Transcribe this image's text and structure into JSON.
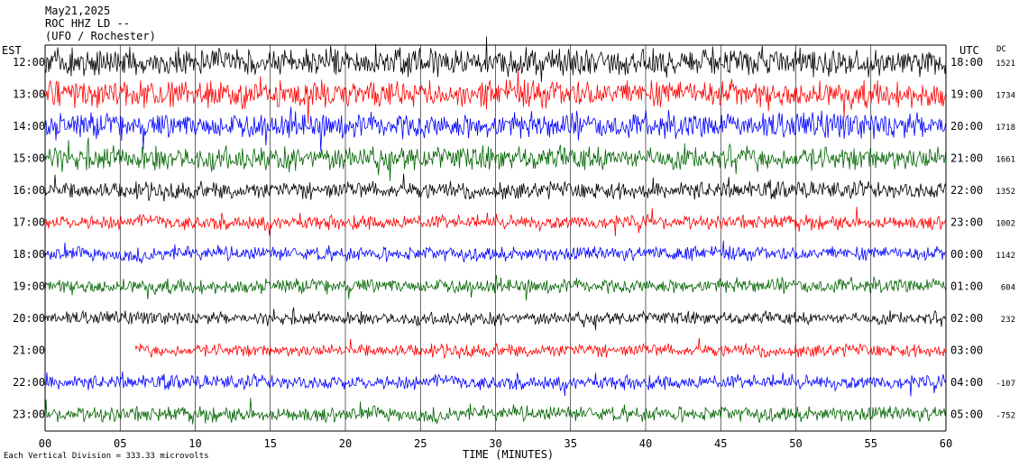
{
  "header": {
    "date": "May21,2025",
    "station": "ROC HHZ LD --",
    "location": "(UFO / Rochester)"
  },
  "chart_data": {
    "type": "line",
    "title": "",
    "xlabel": "TIME (MINUTES)",
    "x_ticks": [
      "00",
      "05",
      "10",
      "15",
      "20",
      "25",
      "30",
      "35",
      "40",
      "45",
      "50",
      "55",
      "60"
    ],
    "xlim": [
      0,
      60
    ],
    "left_axis_label": "EST",
    "right_axis_label": "UTC",
    "dc_label": "DC",
    "grid": true,
    "footer_note": "Each Vertical Division =  333.33 microvolts",
    "rows": [
      {
        "est": "12:00",
        "utc": "18:00",
        "dc": "1521",
        "color": "#000000",
        "amp": 1.0
      },
      {
        "est": "13:00",
        "utc": "19:00",
        "dc": "1734",
        "color": "#ff0000",
        "amp": 1.0
      },
      {
        "est": "14:00",
        "utc": "20:00",
        "dc": "1718",
        "color": "#0000ff",
        "amp": 0.95
      },
      {
        "est": "15:00",
        "utc": "21:00",
        "dc": "1661",
        "color": "#006400",
        "amp": 0.85
      },
      {
        "est": "16:00",
        "utc": "22:00",
        "dc": "1352",
        "color": "#000000",
        "amp": 0.5
      },
      {
        "est": "17:00",
        "utc": "23:00",
        "dc": "1002",
        "color": "#ff0000",
        "amp": 0.35
      },
      {
        "est": "18:00",
        "utc": "00:00",
        "dc": "1142",
        "color": "#0000ff",
        "amp": 0.35
      },
      {
        "est": "19:00",
        "utc": "01:00",
        "dc": "604",
        "color": "#006400",
        "amp": 0.4
      },
      {
        "est": "20:00",
        "utc": "02:00",
        "dc": "232",
        "color": "#000000",
        "amp": 0.3
      },
      {
        "est": "21:00",
        "utc": "03:00",
        "dc": "",
        "color": "#ff0000",
        "amp": 0.3
      },
      {
        "est": "22:00",
        "utc": "04:00",
        "dc": "-107",
        "color": "#0000ff",
        "amp": 0.35
      },
      {
        "est": "23:00",
        "utc": "05:00",
        "dc": "-752",
        "color": "#006400",
        "amp": 0.4
      }
    ]
  }
}
